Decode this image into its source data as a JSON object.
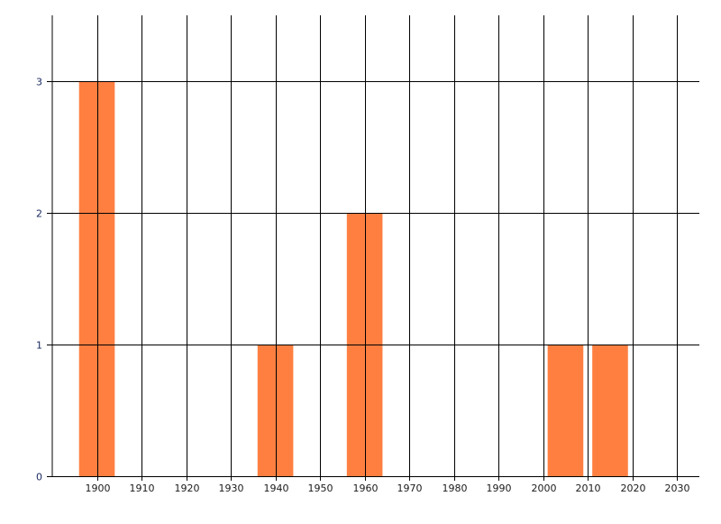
{
  "chart_data": {
    "type": "bar",
    "title": "",
    "xlabel": "",
    "ylabel": "",
    "x": [
      1900,
      1940,
      1960,
      2005,
      2015
    ],
    "values": [
      3,
      1,
      2,
      1,
      1
    ],
    "bar_width_years": 8,
    "xlim": [
      1890,
      2035
    ],
    "ylim": [
      0,
      3.5
    ],
    "x_ticks": [
      1900,
      1910,
      1920,
      1930,
      1940,
      1950,
      1960,
      1970,
      1980,
      1990,
      2000,
      2010,
      2020,
      2030
    ],
    "y_ticks": [
      0,
      1,
      2,
      3
    ],
    "grid": true,
    "colors": {
      "bar": "#FF7F41",
      "grid": "#000000",
      "y_tick_label": "#1a2a60"
    }
  }
}
